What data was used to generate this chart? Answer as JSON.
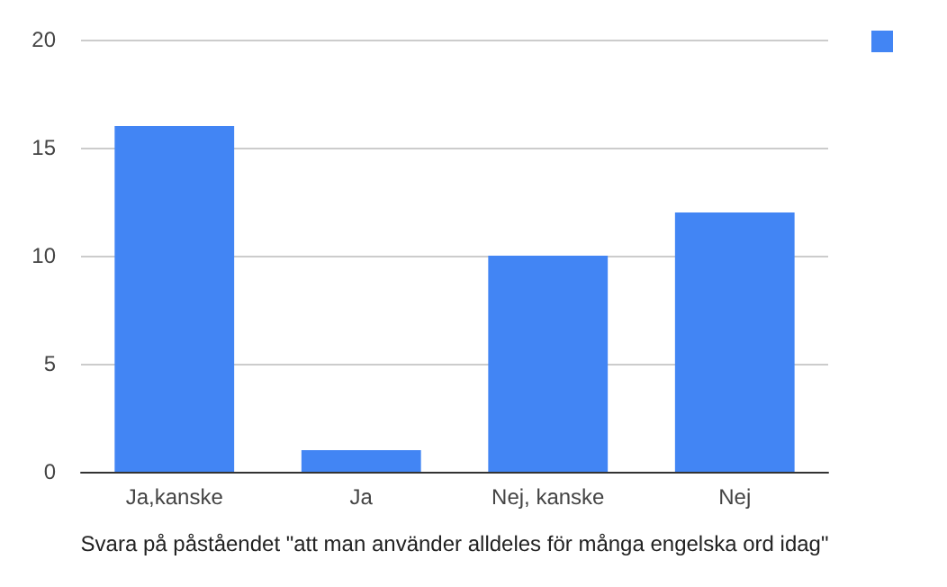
{
  "chart_data": {
    "type": "bar",
    "xlabel": "Svara på påståendet \"att man använder alldeles för många engelska ord idag\"",
    "categories": [
      "Ja,kanske",
      "Ja",
      "Nej, kanske",
      "Nej"
    ],
    "series": [
      {
        "color": "#4285f4",
        "values": [
          16,
          1,
          10,
          12
        ]
      }
    ],
    "ylim": [
      0,
      20
    ],
    "yticks": [
      0,
      5,
      10,
      15,
      20
    ],
    "grid": "y"
  }
}
